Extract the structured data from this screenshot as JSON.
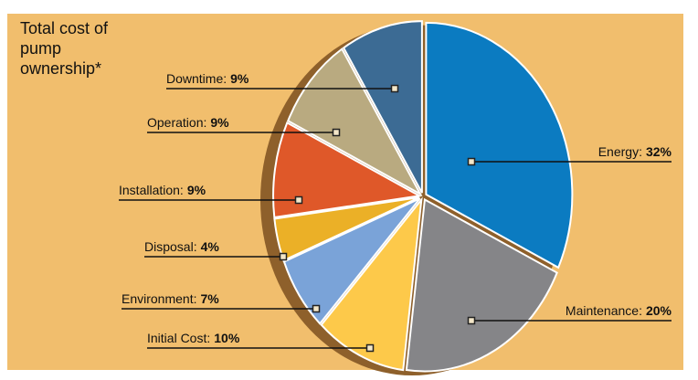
{
  "chart_data": {
    "type": "pie",
    "title": "Total cost of pump ownership*",
    "categories": [
      "Energy:",
      "Maintenance:",
      "Initial Cost:",
      "Environment:",
      "Disposal:",
      "Installation:",
      "Operation:",
      "Downtime:"
    ],
    "values": [
      32,
      20,
      10,
      7,
      4,
      9,
      9,
      9
    ],
    "value_labels": [
      "32%",
      "20%",
      "10%",
      "7%",
      "4%",
      "9%",
      "9%",
      "9%"
    ],
    "colors": [
      "#0b7bc1",
      "#858588",
      "#fdc94a",
      "#7aa3d8",
      "#ebb027",
      "#df5829",
      "#b9aa80",
      "#3c6b94"
    ]
  }
}
